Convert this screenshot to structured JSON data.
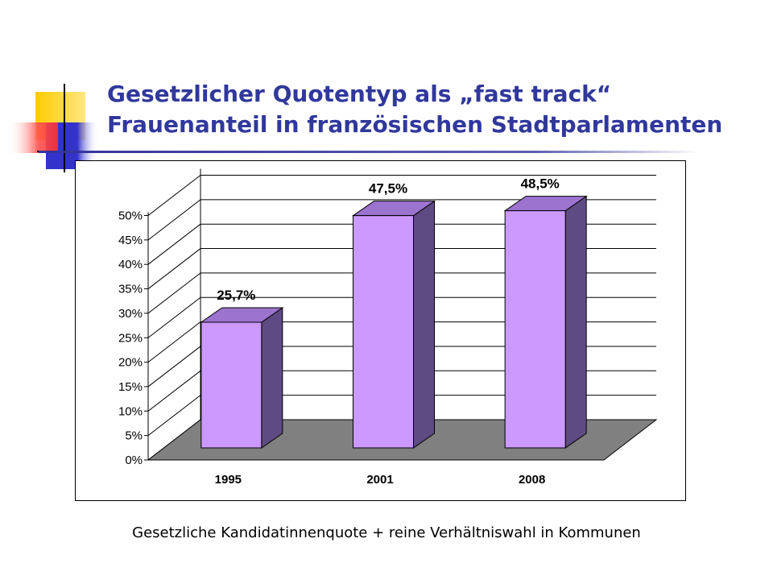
{
  "slide": {
    "title_line1": "Gesetzlicher Quotentyp als „fast track“",
    "title_line2": "Frauenanteil in französischen Stadtparlamenten",
    "caption": "Gesetzliche Kandidatinnenquote + reine Verhältniswahl in Kommunen"
  },
  "colors": {
    "title": "#30389c",
    "bar_front": "#cc99ff",
    "bar_top": "#9c73cf",
    "bar_side": "#5f4b83",
    "floor": "#808080",
    "deco_yellow": "#ffcc00",
    "deco_red": "#ff5050",
    "deco_blue": "#3333cc"
  },
  "chart_data": {
    "type": "bar",
    "categories": [
      "1995",
      "2001",
      "2008"
    ],
    "values": [
      25.7,
      47.5,
      48.5
    ],
    "data_labels": [
      "25,7%",
      "47,5%",
      "48,5%"
    ],
    "y_ticks": [
      "0%",
      "5%",
      "10%",
      "15%",
      "20%",
      "25%",
      "30%",
      "35%",
      "40%",
      "45%",
      "50%"
    ],
    "ylim": [
      0,
      50
    ],
    "title": "",
    "xlabel": "",
    "ylabel": "",
    "grid": true,
    "legend": "none",
    "style": "3d-column"
  }
}
